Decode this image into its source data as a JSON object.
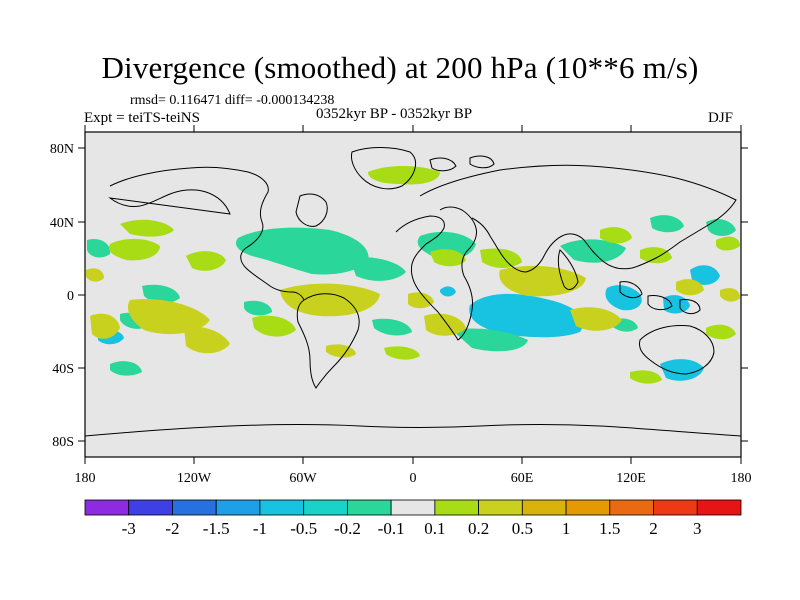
{
  "title": "Divergence (smoothed) at 200 hPa (10**6 m/s)",
  "stats_line": "rmsd= 0.116471  diff= -0.000134238",
  "experiment": "Expt = teiTS-teiNS",
  "period": "0352kyr BP - 0352kyr BP",
  "season": "DJF",
  "lat_labels": [
    "80N",
    "40N",
    "0",
    "40S",
    "80S"
  ],
  "lon_labels": [
    "180",
    "120W",
    "60W",
    "0",
    "60E",
    "120E",
    "180"
  ],
  "colorbar": {
    "labels": [
      "-3",
      "-2",
      "-1.5",
      "-1",
      "-0.5",
      "-0.2",
      "-0.1",
      "0.1",
      "0.2",
      "0.5",
      "1",
      "1.5",
      "2",
      "3"
    ],
    "colors": [
      "#8c2be2",
      "#3f3fe6",
      "#2670e0",
      "#1f9fe8",
      "#17c3e0",
      "#19d3c8",
      "#2ad69a",
      "#e6e6e6",
      "#a8dc14",
      "#c8d21e",
      "#d8b40a",
      "#e49a00",
      "#ea6a14",
      "#ee3a14",
      "#e61414"
    ]
  },
  "map_colors": {
    "background": "#e6e6e6",
    "pos_light": "#a8dc14",
    "pos_mid": "#c8d21e",
    "neg_cyan": "#17c3e0",
    "neg_green": "#2ad69a",
    "coast": "#000000"
  }
}
